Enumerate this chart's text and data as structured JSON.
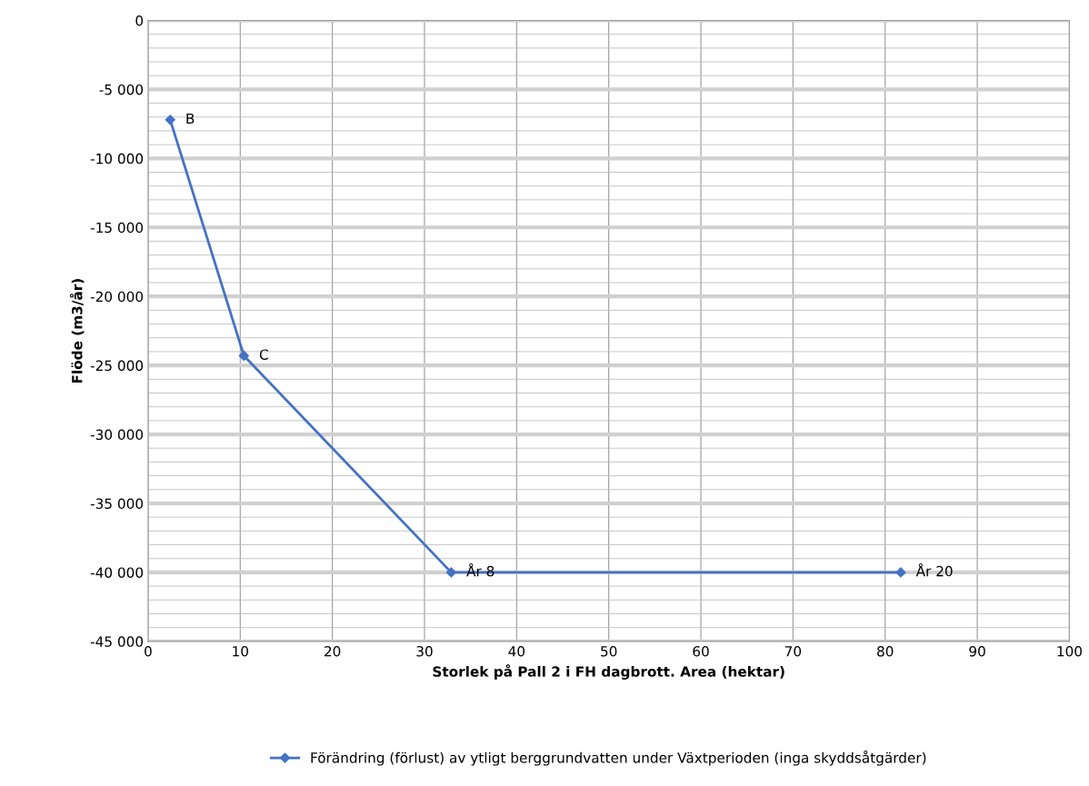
{
  "chart_data": {
    "type": "line",
    "xlabel": "Storlek på Pall 2 i FH dagbrott. Area (hektar)",
    "ylabel": "Flöde (m3/år)",
    "series": [
      {
        "name": "Förändring (förlust) av ytligt berggrundvatten under Växtperioden (inga skyddsåtgärder)",
        "color": "#4472c4",
        "x": [
          2.4,
          10.4,
          32.9,
          81.7
        ],
        "values": [
          -7200,
          -24300,
          -40000,
          -40000
        ]
      }
    ],
    "annotations": [
      {
        "text": "B",
        "x": 2.4,
        "y": -7200
      },
      {
        "text": "C",
        "x": 10.4,
        "y": -24300
      },
      {
        "text": "År 8",
        "x": 32.9,
        "y": -40000
      },
      {
        "text": "År 20",
        "x": 81.7,
        "y": -40000
      }
    ],
    "xlim": [
      0,
      100
    ],
    "xticks": [
      0,
      10,
      20,
      30,
      40,
      50,
      60,
      70,
      80,
      90,
      100
    ],
    "ylim": [
      -45000,
      0
    ],
    "yticks": [
      {
        "value": -45000,
        "label": "-45 000"
      },
      {
        "value": -40000,
        "label": "-40 000"
      },
      {
        "value": -35000,
        "label": "-35 000"
      },
      {
        "value": -30000,
        "label": "-30 000"
      },
      {
        "value": -25000,
        "label": "-25 000"
      },
      {
        "value": -20000,
        "label": "-20 000"
      },
      {
        "value": -15000,
        "label": "-15 000"
      },
      {
        "value": -10000,
        "label": "-10 000"
      },
      {
        "value": -5000,
        "label": "-5 000"
      },
      {
        "value": 0,
        "label": "0"
      }
    ],
    "grid": true,
    "legend": "bottom",
    "marker": "diamond",
    "line_style": "solid"
  }
}
